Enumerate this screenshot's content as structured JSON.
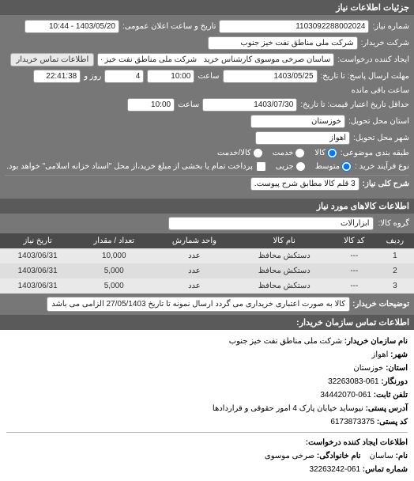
{
  "top_header": "جزئیات اطلاعات نیاز",
  "form": {
    "need_no_label": "شماره نیاز:",
    "need_no": "1103092288002024",
    "announce_label": "تاریخ و ساعت اعلان عمومی:",
    "announce_value": "1403/05/20 - 10:44",
    "buyer_co_label": "شرکت خریدار:",
    "buyer_co": "شرکت ملی مناطق نفت خیز جنوب",
    "requester_label": "ایجاد کننده درخواست:",
    "requester": "ساسان صرخی موسوی کارشناس خرید   شرکت ملی مناطق نفت خیز جنوب",
    "contact_btn": "اطلاعات تماس خریدار",
    "deadline_label": "مهلت ارسال پاسخ: تا تاریخ:",
    "deadline_date": "1403/05/25",
    "deadline_time_label": "ساعت",
    "deadline_time": "10:00",
    "days_remain": "4",
    "days_label": "روز و",
    "time_remain": "22:41:38",
    "remain_label": "ساعت باقی مانده",
    "validity_label": "حداقل تاریخ اعتبار قیمت: تا تاریخ:",
    "validity_date": "1403/07/30",
    "validity_time_label": "ساعت",
    "validity_time": "10:00",
    "delivery_state_label": "استان محل تحویل:",
    "delivery_state": "خوزستان",
    "delivery_city_label": "شهر محل تحویل:",
    "delivery_city": "اهواز",
    "subject_class_label": "طبقه بندی موضوعی:",
    "radio_goods": "کالا",
    "radio_service": "خدمت",
    "radio_both": "کالا/خدمت",
    "process_label": "نوع فرآیند خرید :",
    "radio_med": "متوسط",
    "radio_part": "جزیی",
    "process_note": "پرداخت تمام یا بخشی از مبلغ خرید،از محل \"اسناد خزانه اسلامی\" خواهد بود.",
    "sharh_label": "شرح کلی نیاز:",
    "sharh_value": "3 قلم کالا مطابق شرح پیوست."
  },
  "goods": {
    "header": "اطلاعات کالاهای مورد نیاز",
    "group_label": "گروه کالا:",
    "group_value": "ابزارآلات",
    "columns": [
      "ردیف",
      "کد کالا",
      "نام کالا",
      "واحد شمارش",
      "تعداد / مقدار",
      "تاریخ نیاز"
    ],
    "rows": [
      [
        "1",
        "---",
        "دستکش محافظ",
        "عدد",
        "10,000",
        "1403/06/31"
      ],
      [
        "2",
        "---",
        "دستکش محافظ",
        "عدد",
        "5,000",
        "1403/06/31"
      ],
      [
        "3",
        "---",
        "دستکش محافظ",
        "عدد",
        "5,000",
        "1403/06/31"
      ]
    ]
  },
  "buyer_notes": {
    "label": "توضیحات خریدار:",
    "text": "کالا به صورت اعتباری خریداری می گردد ارسال نمونه تا تاریخ 27/05/1403 الزامی می باشد"
  },
  "contact": {
    "header": "اطلاعات تماس سازمان خریدار:",
    "org_label": "نام سازمان خریدار:",
    "org": "شرکت ملی مناطق نفت خیز جنوب",
    "city_label": "شهر:",
    "city": "اهواز",
    "state_label": "استان:",
    "state": "خوزستان",
    "direct_label": "دورنگار:",
    "direct": "061-32263083",
    "phone_label": "تلفن ثابت:",
    "phone": "061-34442070",
    "addr_label": "آدرس پستی:",
    "addr": "نیوساید خیابان پارک 4 امور حقوقی و قراردادها",
    "postal_label": "کد پستی:",
    "postal": "6173873375",
    "req_creator_header": "اطلاعات ایجاد کننده درخواست:",
    "name_label": "نام:",
    "name": "ساسان",
    "family_label": "نام خانوادگی:",
    "family": "صرخی موسوی",
    "contact_phone_label": "شماره تماس:",
    "contact_phone": "061-32263242"
  },
  "colors": {
    "header_bg": "#5a5a5a",
    "panel_bg": "#777777",
    "row_even": "#dedede",
    "row_odd": "#e9e9e9",
    "yellow": "#fff47a"
  }
}
